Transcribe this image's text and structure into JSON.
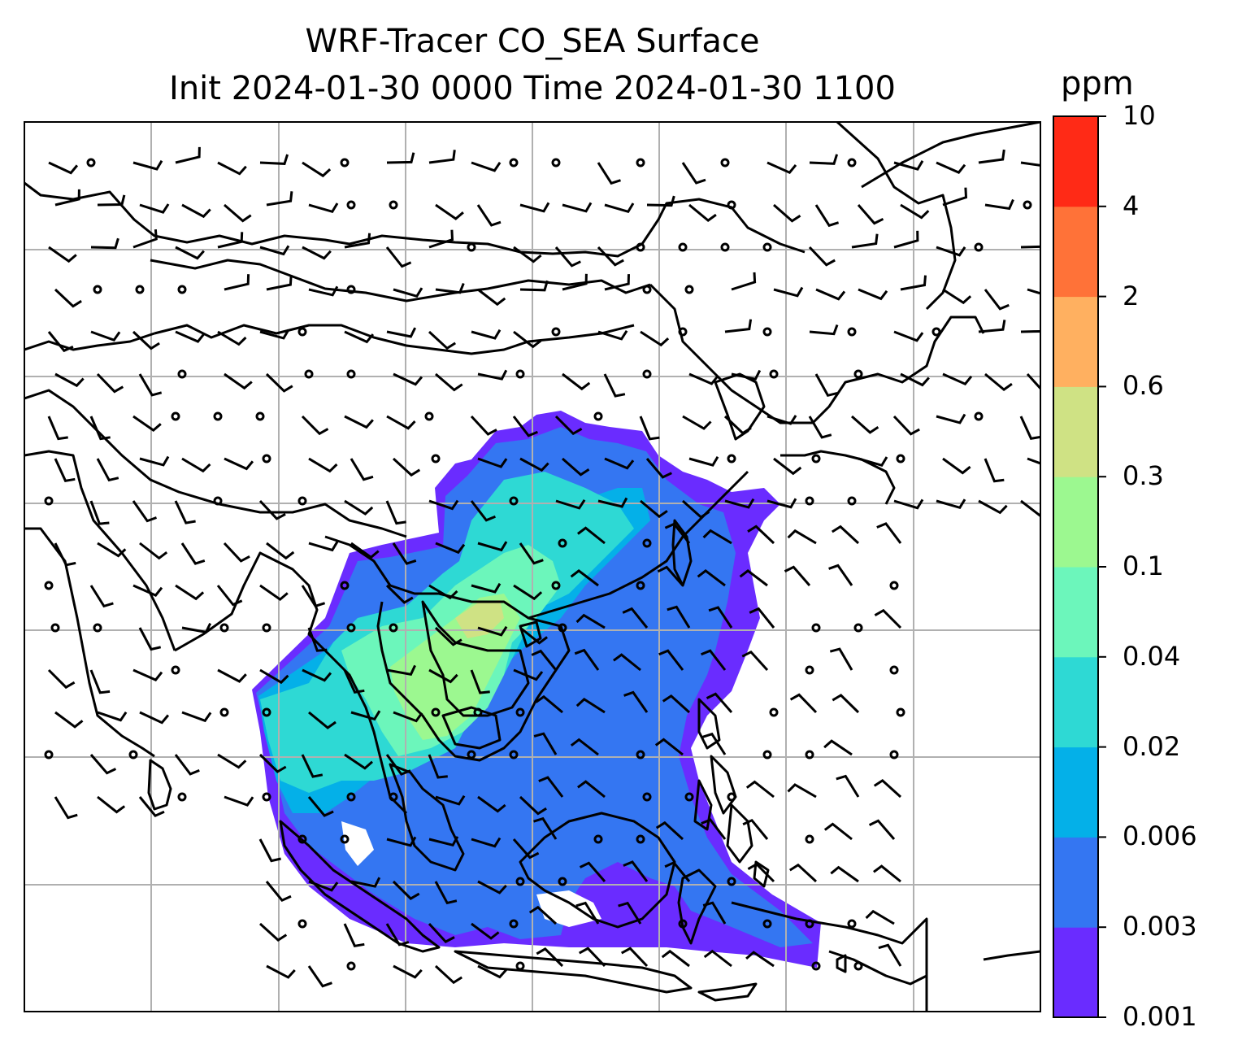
{
  "title": {
    "line1": "WRF-Tracer CO_SEA Surface",
    "line2": "Init 2024-01-30 0000 Time 2024-01-30 1100"
  },
  "colorbar": {
    "unit": "ppm",
    "levels": [
      "0.001",
      "0.003",
      "0.006",
      "0.02",
      "0.04",
      "0.1",
      "0.3",
      "0.6",
      "2",
      "4",
      "10"
    ],
    "colors": [
      "#6a2cff",
      "#3476f2",
      "#04b0e8",
      "#2ed9d4",
      "#6cf6bb",
      "#9cf890",
      "#cfe284",
      "#ffb060",
      "#ff7238",
      "#ff2a16"
    ]
  },
  "map": {
    "gridlines": true,
    "coastline_color": "#000000",
    "grid_color": "#b0b0b0"
  }
}
